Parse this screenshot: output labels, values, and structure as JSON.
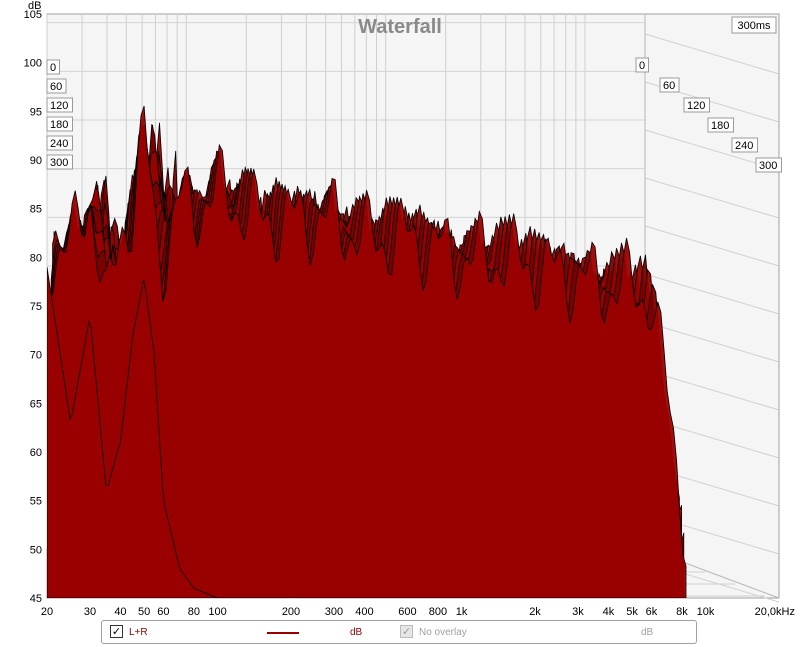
{
  "chart_data": {
    "type": "area",
    "title": "Waterfall",
    "ylabel": "dB",
    "xlabel_unit": "kHz",
    "time_range_label": "300ms",
    "x_scale": "log",
    "xlim": [
      20,
      20000
    ],
    "ylim": [
      45,
      105
    ],
    "y_ticks": [
      45,
      50,
      55,
      60,
      65,
      70,
      75,
      80,
      85,
      90,
      95,
      100,
      105
    ],
    "x_ticks": [
      {
        "value": 20,
        "label": "20"
      },
      {
        "value": 30,
        "label": "30"
      },
      {
        "value": 40,
        "label": "40"
      },
      {
        "value": 50,
        "label": "50"
      },
      {
        "value": 60,
        "label": "60"
      },
      {
        "value": 80,
        "label": "80"
      },
      {
        "value": 100,
        "label": "100"
      },
      {
        "value": 200,
        "label": "200"
      },
      {
        "value": 300,
        "label": "300"
      },
      {
        "value": 400,
        "label": "400"
      },
      {
        "value": 600,
        "label": "600"
      },
      {
        "value": 800,
        "label": "800"
      },
      {
        "value": 1000,
        "label": "1k"
      },
      {
        "value": 2000,
        "label": "2k"
      },
      {
        "value": 3000,
        "label": "3k"
      },
      {
        "value": 4000,
        "label": "4k"
      },
      {
        "value": 5000,
        "label": "5k"
      },
      {
        "value": 6000,
        "label": "6k"
      },
      {
        "value": 8000,
        "label": "8k"
      },
      {
        "value": 10000,
        "label": "10k"
      },
      {
        "value": 20000,
        "label": "20,0kHz"
      }
    ],
    "time_slices_ms": [
      0,
      60,
      120,
      180,
      240,
      300
    ],
    "time_slice_labels": [
      "0",
      "60",
      "120",
      "180",
      "240",
      "300"
    ],
    "grid": true,
    "legend_placement": "bottom",
    "front_slice_db": {
      "freq": [
        20,
        25,
        30,
        35,
        40,
        45,
        50,
        55,
        60,
        70,
        80,
        100,
        150,
        200
      ],
      "db": [
        79,
        63,
        74,
        56,
        61,
        72,
        78,
        70,
        55,
        48,
        46,
        45,
        45,
        45
      ]
    },
    "ridge_peak_db": {
      "freq": [
        20,
        25,
        30,
        35,
        40,
        45,
        50,
        55,
        60,
        70,
        80,
        100,
        150,
        200,
        300,
        400,
        600,
        800,
        1000,
        1500,
        2000,
        3000,
        4000,
        5000,
        6000,
        8000
      ],
      "db": [
        80,
        81,
        87,
        74,
        83,
        85,
        93,
        84,
        80,
        86,
        85,
        87,
        84,
        84,
        84,
        82,
        82,
        81,
        80,
        80,
        79,
        78,
        77,
        77,
        76,
        75
      ]
    },
    "colors": {
      "fill": "#9b0000",
      "edge": "#000000",
      "title": "#8a8a8a",
      "grid": "#d0d0d0"
    }
  },
  "legend": {
    "items": [
      {
        "checked": true,
        "label": "L+R",
        "unit": "dB",
        "color": "#9b0000",
        "enabled": true
      },
      {
        "checked": true,
        "label": "No overlay",
        "unit": "dB",
        "color": "#b0b0b0",
        "enabled": false
      }
    ]
  }
}
